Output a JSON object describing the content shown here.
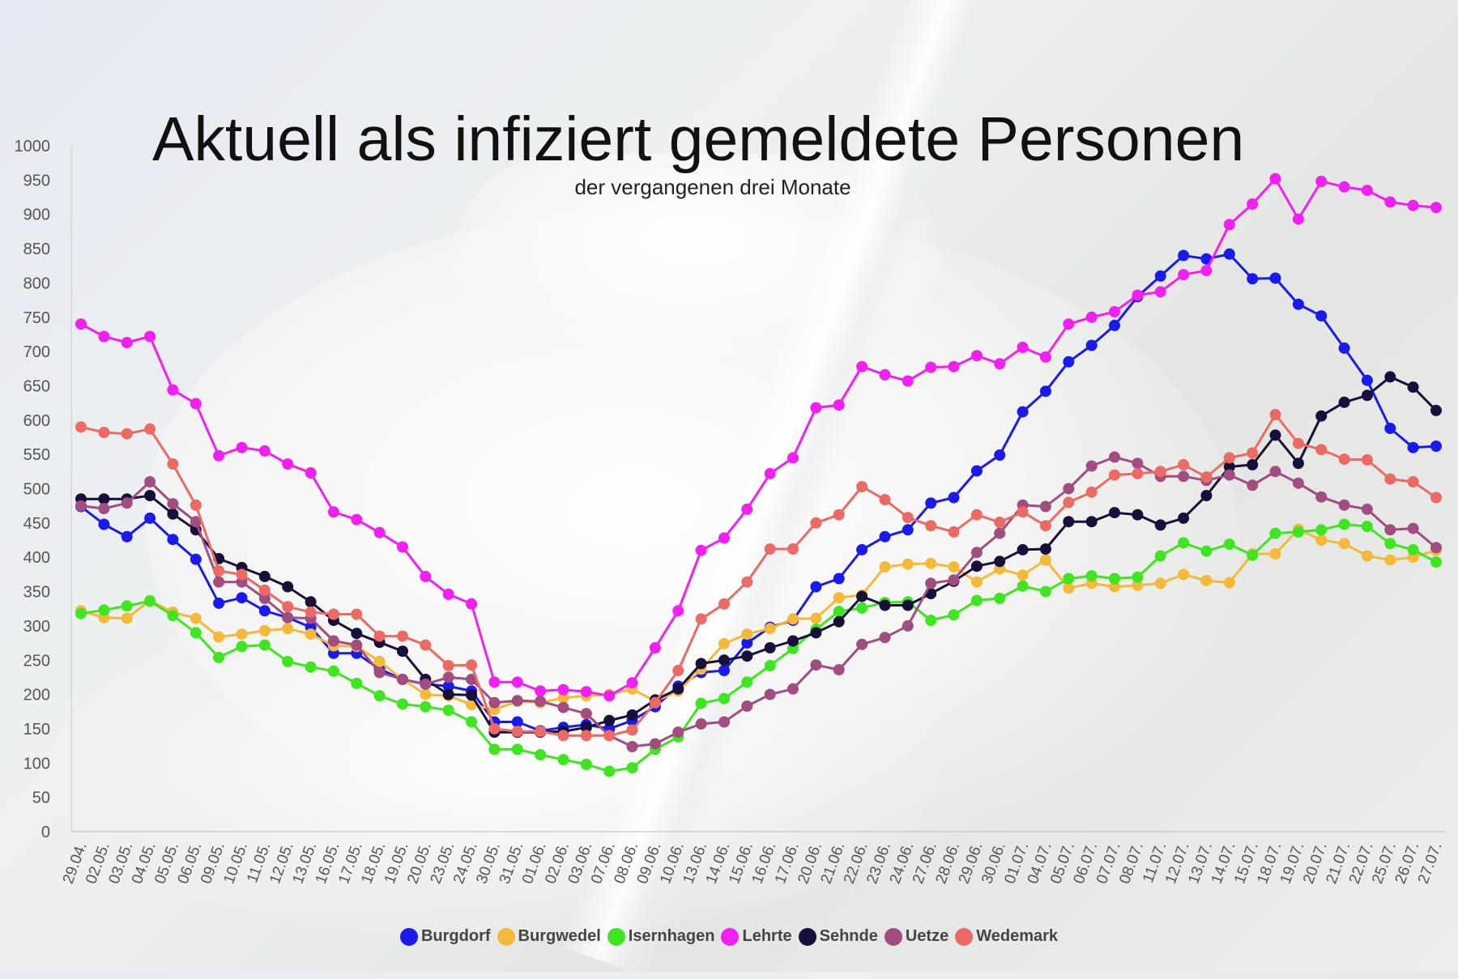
{
  "chart_data": {
    "type": "line",
    "title": "Aktuell als infiziert gemeldete Personen",
    "subtitle": "der vergangenen drei Monate",
    "xlabel": "",
    "ylabel": "",
    "ylim": [
      0,
      1000
    ],
    "yticks": [
      0,
      50,
      100,
      150,
      200,
      250,
      300,
      350,
      400,
      450,
      500,
      550,
      600,
      650,
      700,
      750,
      800,
      850,
      900,
      950,
      1000
    ],
    "grid": false,
    "legend_position": "bottom",
    "x_tick_labels": [
      "29.04.",
      "02.05.",
      "03.05.",
      "04.05.",
      "05.05.",
      "06.05.",
      "09.05.",
      "10.05.",
      "11.05.",
      "12.05.",
      "13.05.",
      "16.05.",
      "17.05.",
      "18.05.",
      "19.05.",
      "20.05.",
      "23.05.",
      "24.05.",
      "30.05.",
      "31.05.",
      "01.06.",
      "02.06.",
      "03.06.",
      "07.06.",
      "08.06.",
      "09.06.",
      "10.06.",
      "13.06.",
      "14.06.",
      "15.06.",
      "16.06.",
      "17.06.",
      "20.06.",
      "21.06.",
      "22.06.",
      "23.06.",
      "24.06.",
      "27.06.",
      "28.06.",
      "29.06.",
      "30.06.",
      "01.07.",
      "04.07.",
      "05.07.",
      "06.07.",
      "07.07.",
      "08.07.",
      "11.07.",
      "12.07.",
      "13.07.",
      "14.07.",
      "15.07.",
      "18.07.",
      "19.07.",
      "20.07.",
      "21.07.",
      "22.07.",
      "25.07.",
      "26.07.",
      "27.07."
    ],
    "series": [
      {
        "name": "Burgdorf",
        "color": "#1a1aee",
        "values": [
          474,
          448,
          430,
          457,
          426,
          397,
          333,
          341,
          322,
          312,
          298,
          260,
          260,
          237,
          222,
          215,
          212,
          205,
          160,
          160,
          147,
          152,
          156,
          150,
          162,
          182,
          212,
          232,
          235,
          275,
          298,
          308,
          357,
          369,
          411,
          430,
          440,
          479,
          487,
          526,
          549,
          612,
          642,
          685,
          709,
          738,
          780,
          810,
          840,
          835,
          842,
          806,
          807,
          769,
          752,
          705,
          658,
          588,
          560,
          562
        ]
      },
      {
        "name": "Burgwedel",
        "color": "#f5b93a",
        "values": [
          322,
          312,
          311,
          337,
          320,
          311,
          284,
          288,
          293,
          296,
          288,
          271,
          270,
          248,
          222,
          200,
          198,
          185,
          178,
          190,
          188,
          195,
          198,
          200,
          208,
          190,
          205,
          237,
          274,
          288,
          296,
          310,
          311,
          341,
          345,
          386,
          390,
          391,
          386,
          364,
          383,
          374,
          396,
          355,
          362,
          357,
          359,
          362,
          375,
          366,
          363,
          405,
          405,
          441,
          425,
          420,
          402,
          396,
          400,
          410
        ]
      },
      {
        "name": "Isernhagen",
        "color": "#3ee61f",
        "values": [
          318,
          323,
          329,
          336,
          315,
          290,
          254,
          270,
          272,
          248,
          240,
          234,
          216,
          198,
          186,
          182,
          177,
          160,
          120,
          120,
          112,
          105,
          98,
          88,
          93,
          120,
          138,
          187,
          194,
          218,
          242,
          267,
          295,
          321,
          326,
          334,
          335,
          308,
          316,
          337,
          340,
          358,
          350,
          369,
          373,
          369,
          371,
          402,
          421,
          409,
          419,
          403,
          435,
          437,
          440,
          448,
          445,
          420,
          411,
          393
        ]
      },
      {
        "name": "Lehrte",
        "color": "#f21ff2",
        "values": [
          740,
          722,
          713,
          722,
          644,
          624,
          548,
          560,
          555,
          536,
          523,
          466,
          455,
          436,
          415,
          372,
          346,
          332,
          218,
          218,
          205,
          207,
          204,
          198,
          217,
          268,
          322,
          410,
          428,
          470,
          522,
          545,
          618,
          622,
          678,
          666,
          657,
          677,
          678,
          694,
          682,
          706,
          692,
          740,
          750,
          758,
          782,
          787,
          812,
          818,
          885,
          915,
          952,
          893,
          948,
          940,
          935,
          918,
          913,
          910
        ]
      },
      {
        "name": "Sehnde",
        "color": "#17103a",
        "values": [
          485,
          485,
          485,
          490,
          463,
          440,
          398,
          385,
          372,
          357,
          335,
          308,
          289,
          276,
          263,
          222,
          200,
          199,
          145,
          145,
          145,
          146,
          152,
          162,
          170,
          192,
          208,
          245,
          250,
          256,
          268,
          278,
          290,
          306,
          343,
          330,
          330,
          347,
          365,
          387,
          394,
          411,
          412,
          452,
          452,
          465,
          462,
          447,
          457,
          490,
          532,
          535,
          578,
          537,
          606,
          626,
          636,
          663,
          648,
          614
        ]
      },
      {
        "name": "Uetze",
        "color": "#a14d80",
        "values": [
          475,
          471,
          479,
          510,
          478,
          452,
          364,
          364,
          340,
          312,
          311,
          278,
          272,
          232,
          222,
          215,
          225,
          222,
          188,
          191,
          190,
          181,
          172,
          140,
          124,
          128,
          145,
          157,
          160,
          183,
          200,
          208,
          243,
          236,
          273,
          283,
          300,
          362,
          367,
          407,
          435,
          476,
          474,
          500,
          533,
          546,
          537,
          518,
          518,
          512,
          520,
          505,
          525,
          508,
          488,
          476,
          470,
          440,
          442,
          414
        ]
      },
      {
        "name": "Wedemark",
        "color": "#ec6a63",
        "values": [
          590,
          582,
          580,
          587,
          536,
          476,
          380,
          375,
          352,
          328,
          320,
          317,
          317,
          285,
          285,
          272,
          242,
          243,
          150,
          146,
          146,
          140,
          140,
          140,
          148,
          188,
          235,
          310,
          332,
          364,
          412,
          412,
          450,
          462,
          503,
          484,
          458,
          446,
          437,
          462,
          451,
          466,
          446,
          480,
          495,
          520,
          522,
          525,
          535,
          517,
          545,
          552,
          608,
          566,
          557,
          543,
          542,
          514,
          510,
          487
        ]
      }
    ]
  }
}
